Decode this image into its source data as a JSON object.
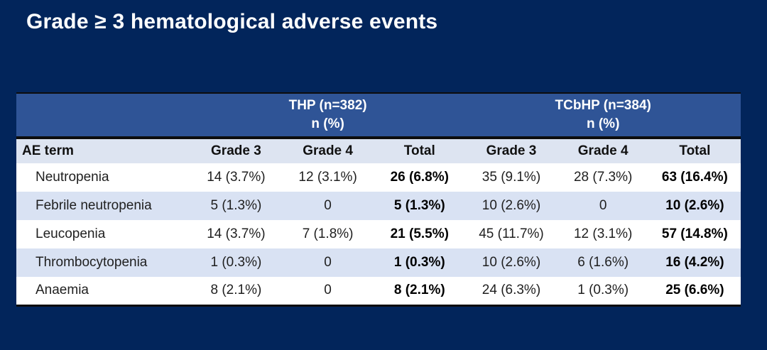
{
  "title": "Grade ≥ 3 hematological adverse events",
  "colors": {
    "slide_background": "#02255B",
    "group_header_blue": "#2F5496",
    "column_header_light": "#DDE4F1",
    "row_alt_light_blue": "#D9E2F3",
    "row_white": "#FFFFFF",
    "title_text": "#FFFFFF"
  },
  "table": {
    "group_headers": [
      {
        "label": "THP (n=382)",
        "sub": "n (%)"
      },
      {
        "label": "TCbHP (n=384)",
        "sub": "n (%)"
      }
    ],
    "columns": [
      "AE term",
      "Grade 3",
      "Grade 4",
      "Total",
      "Grade 3",
      "Grade 4",
      "Total"
    ],
    "rows": [
      {
        "term": "Neutropenia",
        "values": [
          "14 (3.7%)",
          "12 (3.1%)",
          "26 (6.8%)",
          "35 (9.1%)",
          "28 (7.3%)",
          "63 (16.4%)"
        ]
      },
      {
        "term": "Febrile neutropenia",
        "values": [
          "5 (1.3%)",
          "0",
          "5 (1.3%)",
          "10 (2.6%)",
          "0",
          "10 (2.6%)"
        ]
      },
      {
        "term": "Leucopenia",
        "values": [
          "14 (3.7%)",
          "7 (1.8%)",
          "21 (5.5%)",
          "45 (11.7%)",
          "12 (3.1%)",
          "57 (14.8%)"
        ]
      },
      {
        "term": "Thrombocytopenia",
        "values": [
          "1 (0.3%)",
          "0",
          "1 (0.3%)",
          "10 (2.6%)",
          "6 (1.6%)",
          "16 (4.2%)"
        ]
      },
      {
        "term": "Anaemia",
        "values": [
          "8 (2.1%)",
          "0",
          "8 (2.1%)",
          "24 (6.3%)",
          "1 (0.3%)",
          "25 (6.6%)"
        ]
      }
    ]
  }
}
